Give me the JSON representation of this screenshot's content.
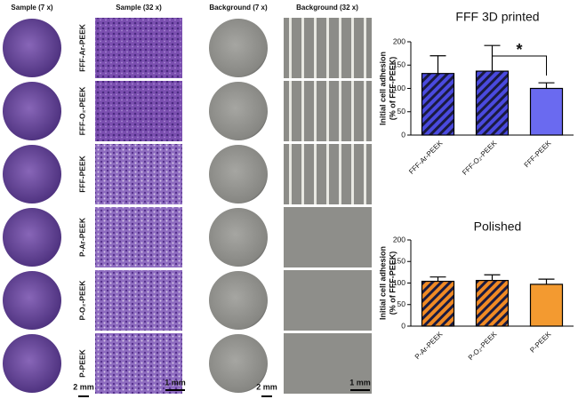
{
  "panels": {
    "column_headers": [
      "Sample (7 x)",
      "Sample (32 x)",
      "Background  (7 x)",
      "Background  (32 x)"
    ],
    "row_labels": [
      "FFF-Ar-PEEK",
      "FFF-O₂-PEEK",
      "FFF-PEEK",
      "P-Ar-PEEK",
      "P-O₂-PEEK",
      "P-PEEK"
    ],
    "scale_bars": [
      "2 mm",
      "1 mm",
      "2 mm",
      "1 mm"
    ]
  },
  "chart_data": [
    {
      "type": "bar",
      "title": "FFF 3D printed",
      "ylabel": [
        "Initial cell adhesion",
        "(% of FFF-PEEK)"
      ],
      "categories": [
        "FFF-Ar-PEEK",
        "FFF-O₂-PEEK",
        "FFF-PEEK"
      ],
      "values": [
        132,
        137,
        100
      ],
      "errors": [
        38,
        55,
        12
      ],
      "hatch": [
        true,
        true,
        false
      ],
      "colors": [
        "#4a4adf",
        "#4a4adf",
        "#6a6af0"
      ],
      "annotation": "*",
      "ylim": [
        0,
        200
      ],
      "yticks": [
        0,
        50,
        100,
        150,
        200
      ]
    },
    {
      "type": "bar",
      "title": "Polished",
      "ylabel": [
        "Initial cell adhesion",
        "(% of FFF-PEEK)"
      ],
      "categories": [
        "P-Ar-PEEK",
        "P-O₂-PEEK",
        "P-PEEK"
      ],
      "values": [
        104,
        106,
        97
      ],
      "errors": [
        10,
        13,
        12
      ],
      "hatch": [
        true,
        true,
        false
      ],
      "colors": [
        "#f08a24",
        "#f08a24",
        "#f39a30"
      ],
      "ylim": [
        0,
        200
      ],
      "yticks": [
        0,
        50,
        100,
        150,
        200
      ]
    }
  ]
}
